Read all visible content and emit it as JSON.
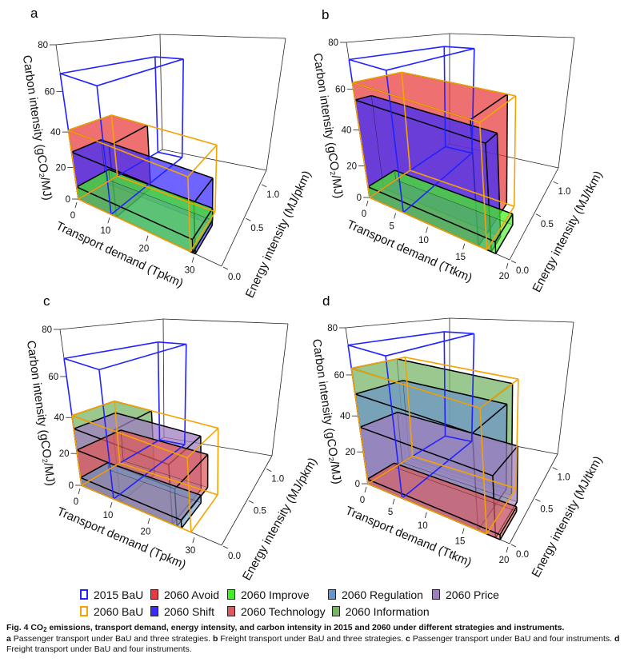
{
  "chart_data": [
    {
      "type": "3d-box",
      "panel": "a",
      "xlabel": "Transport demand (Tpkm)",
      "ylabel": "Energy intensity (MJ/pkm)",
      "zlabel": "Carbon intensity (gCO₂/MJ)",
      "xlim": [
        0,
        35
      ],
      "ylim": [
        0,
        1.25
      ],
      "zlim": [
        0,
        80
      ],
      "xticks": [
        "0",
        "10",
        "20",
        "30"
      ],
      "yticks": [
        "0.0",
        "0.5",
        "1.0"
      ],
      "zticks": [
        "0",
        "20",
        "40",
        "60",
        "80"
      ],
      "boxes": [
        {
          "name": "2060 Avoid",
          "style": "filled",
          "transport_demand": 11.5,
          "energy_intensity": 0.45,
          "carbon_intensity": 41
        },
        {
          "name": "2060 Shift",
          "style": "filled",
          "transport_demand": 30,
          "energy_intensity": 0.3,
          "carbon_intensity": 29
        },
        {
          "name": "2060 Improve",
          "style": "filled",
          "transport_demand": 29.5,
          "energy_intensity": 0.35,
          "carbon_intensity": 8
        },
        {
          "name": "2015 BaU",
          "style": "outline",
          "transport_demand": 10,
          "energy_intensity": 1.15,
          "carbon_intensity": 68
        },
        {
          "name": "2060 BaU",
          "style": "outline",
          "transport_demand": 29,
          "energy_intensity": 0.45,
          "carbon_intensity": 41
        }
      ]
    },
    {
      "type": "3d-box",
      "panel": "b",
      "xlabel": "Transport demand (Ttkm)",
      "ylabel": "Energy intensity (MJ/tkm)",
      "zlabel": "Carbon intensity (gCO₂/MJ)",
      "xlim": [
        0,
        20
      ],
      "ylim": [
        0,
        1.25
      ],
      "zlim": [
        0,
        80
      ],
      "xticks": [
        "0",
        "5",
        "10",
        "15",
        "20"
      ],
      "yticks": [
        "0.0",
        "0.5",
        "1.0"
      ],
      "zticks": [
        "0",
        "20",
        "40",
        "60",
        "80"
      ],
      "boxes": [
        {
          "name": "2060 Avoid",
          "style": "filled",
          "transport_demand": 16.5,
          "energy_intensity": 0.5,
          "carbon_intensity": 63
        },
        {
          "name": "2060 Shift",
          "style": "filled",
          "transport_demand": 18,
          "energy_intensity": 0.15,
          "carbon_intensity": 55
        },
        {
          "name": "2060 Improve",
          "style": "filled",
          "transport_demand": 18.5,
          "energy_intensity": 0.3,
          "carbon_intensity": 7
        },
        {
          "name": "2015 BaU",
          "style": "outline",
          "transport_demand": 6,
          "energy_intensity": 1.15,
          "carbon_intensity": 73
        },
        {
          "name": "2060 BaU",
          "style": "outline",
          "transport_demand": 17.5,
          "energy_intensity": 0.5,
          "carbon_intensity": 63
        }
      ]
    },
    {
      "type": "3d-box",
      "panel": "c",
      "xlabel": "Transport demand (Tpkm)",
      "ylabel": "Energy intensity (MJ/pkm)",
      "zlabel": "Carbon intensity (gCO₂/MJ)",
      "xlim": [
        0,
        35
      ],
      "ylim": [
        0,
        1.25
      ],
      "zlim": [
        0,
        80
      ],
      "xticks": [
        "0",
        "10",
        "20",
        "30"
      ],
      "yticks": [
        "0.0",
        "0.5",
        "1.0"
      ],
      "zticks": [
        "0",
        "20",
        "40",
        "60",
        "80"
      ],
      "boxes": [
        {
          "name": "2060 Information",
          "style": "filled",
          "transport_demand": 12,
          "energy_intensity": 0.45,
          "carbon_intensity": 41
        },
        {
          "name": "2060 Price",
          "style": "filled",
          "transport_demand": 25,
          "energy_intensity": 0.45,
          "carbon_intensity": 34
        },
        {
          "name": "2060 Technology",
          "style": "filled",
          "transport_demand": 26,
          "energy_intensity": 0.5,
          "carbon_intensity": 22
        },
        {
          "name": "2060 Regulation",
          "style": "filled",
          "transport_demand": 27,
          "energy_intensity": 0.3,
          "carbon_intensity": 5
        },
        {
          "name": "2015 BaU",
          "style": "outline",
          "transport_demand": 10,
          "energy_intensity": 1.15,
          "carbon_intensity": 68
        },
        {
          "name": "2060 BaU",
          "style": "outline",
          "transport_demand": 29,
          "energy_intensity": 0.45,
          "carbon_intensity": 41
        }
      ]
    },
    {
      "type": "3d-box",
      "panel": "d",
      "xlabel": "Transport demand (Ttkm)",
      "ylabel": "Energy intensity (MJ/tkm)",
      "zlabel": "Carbon intensity (gCO₂/MJ)",
      "xlim": [
        0,
        20
      ],
      "ylim": [
        0,
        1.25
      ],
      "zlim": [
        0,
        80
      ],
      "xticks": [
        "0",
        "5",
        "10",
        "15",
        "20"
      ],
      "yticks": [
        "0.0",
        "0.5",
        "1.0"
      ],
      "zticks": [
        "0",
        "20",
        "40",
        "60",
        "80"
      ],
      "boxes": [
        {
          "name": "2060 Information",
          "style": "filled",
          "transport_demand": 17.5,
          "energy_intensity": 0.45,
          "carbon_intensity": 63
        },
        {
          "name": "2060 Regulation",
          "style": "filled",
          "transport_demand": 16.5,
          "energy_intensity": 0.5,
          "carbon_intensity": 51
        },
        {
          "name": "2060 Price",
          "style": "filled",
          "transport_demand": 18.5,
          "energy_intensity": 0.4,
          "carbon_intensity": 34
        },
        {
          "name": "2060 Technology",
          "style": "filled",
          "transport_demand": 19,
          "energy_intensity": 0.3,
          "carbon_intensity": 3
        },
        {
          "name": "2015 BaU",
          "style": "outline",
          "transport_demand": 6,
          "energy_intensity": 1.15,
          "carbon_intensity": 73
        },
        {
          "name": "2060 BaU",
          "style": "outline",
          "transport_demand": 17.5,
          "energy_intensity": 0.55,
          "carbon_intensity": 63
        }
      ]
    }
  ],
  "colors": {
    "2015 BaU": "#2222ff",
    "2060 BaU": "#f5a300",
    "2060 Avoid": "#e83c3c",
    "2060 Shift": "#3a2cff",
    "2060 Improve": "#44ee22",
    "2060 Technology": "#dd5a5a",
    "2060 Regulation": "#6a95c6",
    "2060 Information": "#78b466",
    "2060 Price": "#a07cc0"
  },
  "legend": {
    "row1": [
      {
        "label": "2015 BaU",
        "style": "outline"
      },
      {
        "label": "2060 Avoid",
        "style": "filled"
      },
      {
        "label": "2060 Improve",
        "style": "filled"
      },
      {
        "label": "2060 Regulation",
        "style": "filled"
      },
      {
        "label": "2060 Price",
        "style": "filled"
      }
    ],
    "row2": [
      {
        "label": "2060 BaU",
        "style": "outline"
      },
      {
        "label": "2060 Shift",
        "style": "filled"
      },
      {
        "label": "2060 Technology",
        "style": "filled"
      },
      {
        "label": "2060 Information",
        "style": "filled"
      }
    ]
  },
  "caption": {
    "title_prefix": "Fig. 4 CO",
    "title_sub": "2",
    "title_rest": " emissions, transport demand, energy intensity, and carbon intensity in 2015 and 2060 under different strategies and instruments.",
    "parts": [
      {
        "letter": "a",
        "text": " Passenger transport under BaU and three strategies. "
      },
      {
        "letter": "b",
        "text": " Freight transport under BaU and three strategies. "
      },
      {
        "letter": "c",
        "text": " Passenger transport under BaU and four instruments. "
      },
      {
        "letter": "d",
        "text": " Freight transport under BaU and four instruments."
      }
    ]
  }
}
